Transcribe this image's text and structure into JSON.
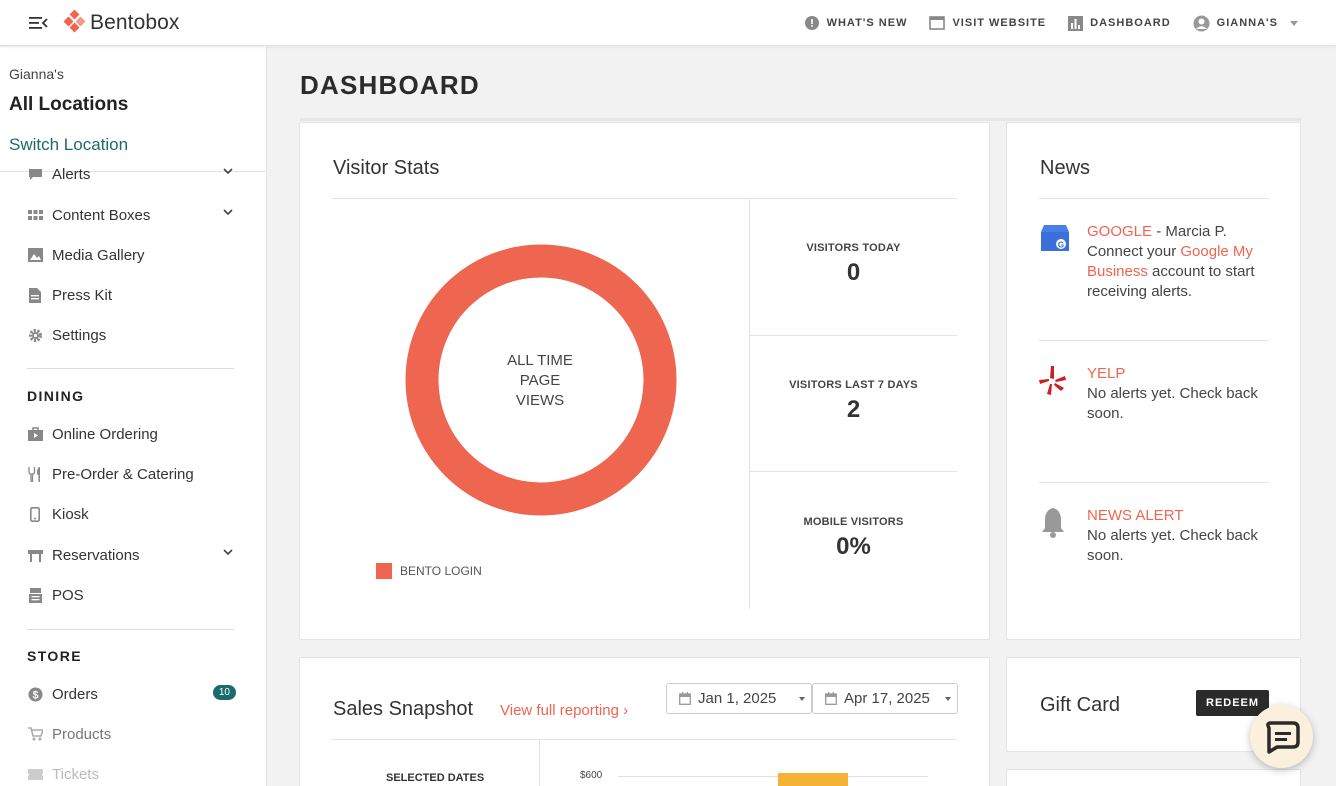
{
  "header": {
    "logo_text": "Bentobox",
    "links": [
      {
        "label": "WHAT'S NEW",
        "icon": "badge-icon"
      },
      {
        "label": "VISIT WEBSITE",
        "icon": "browser-window-icon"
      },
      {
        "label": "DASHBOARD",
        "icon": "bar-chart-icon"
      },
      {
        "label": "GIANNA'S",
        "icon": "user-avatar-icon"
      }
    ]
  },
  "sidebar": {
    "owner": "Gianna's",
    "location": "All Locations",
    "switch_label": "Switch Location",
    "items": [
      {
        "label": "Alerts"
      },
      {
        "label": "Content Boxes"
      },
      {
        "label": "Media Gallery"
      },
      {
        "label": "Press Kit"
      },
      {
        "label": "Settings"
      }
    ],
    "dining_heading": "DINING",
    "dining_items": [
      {
        "label": "Online Ordering"
      },
      {
        "label": "Pre-Order & Catering"
      },
      {
        "label": "Kiosk"
      },
      {
        "label": "Reservations"
      },
      {
        "label": "POS"
      }
    ],
    "store_heading": "STORE",
    "store_items": [
      {
        "label": "Orders",
        "badge": "10"
      },
      {
        "label": "Products"
      },
      {
        "label": "Tickets"
      }
    ]
  },
  "main": {
    "title": "DASHBOARD",
    "visitor_stats": {
      "title": "Visitor Stats",
      "donut_label": [
        "ALL TIME",
        "PAGE",
        "VIEWS"
      ],
      "legend": "BENTO LOGIN",
      "stats": [
        {
          "label": "VISITORS TODAY",
          "value": "0"
        },
        {
          "label": "VISITORS LAST 7 DAYS",
          "value": "2"
        },
        {
          "label": "MOBILE VISITORS",
          "value": "0%"
        }
      ]
    },
    "news": {
      "title": "News",
      "google_source": "GOOGLE",
      "google_author": " - Marcia P.",
      "google_text_1": "Connect your ",
      "google_link": "Google My Business",
      "google_text_2": " account to start receiving alerts.",
      "yelp_source": "YELP",
      "yelp_text": "No alerts yet. Check back soon.",
      "alert_source": "NEWS ALERT",
      "alert_text": "No alerts yet. Check back soon."
    },
    "sales": {
      "title": "Sales Snapshot",
      "link": "View full reporting ›",
      "date_from": "Jan 1, 2025",
      "date_to": "Apr 17, 2025",
      "selected_dates": "SELECTED DATES",
      "axis_top": "$600"
    },
    "gift_card": {
      "title": "Gift Card",
      "redeem": "REDEEM"
    }
  },
  "colors": {
    "accent": "#ee6550",
    "teal": "#1b6b6a",
    "bar": "#f5b335"
  }
}
